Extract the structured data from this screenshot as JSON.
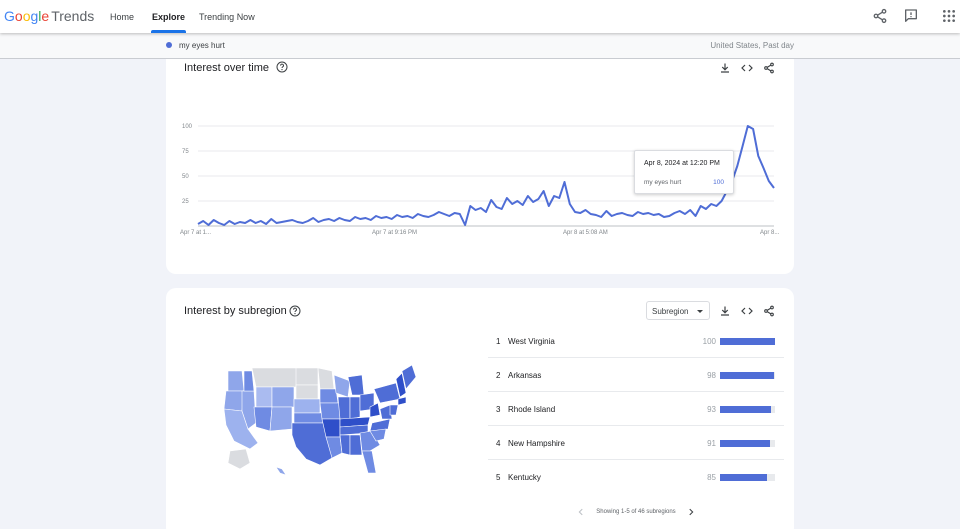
{
  "header": {
    "logo_google": [
      "G",
      "o",
      "o",
      "g",
      "l",
      "e"
    ],
    "logo_trends": "Trends",
    "nav": {
      "home": "Home",
      "explore": "Explore",
      "trending": "Trending Now"
    }
  },
  "query": {
    "term": "my eyes hurt",
    "location_time": "United States, Past day",
    "color": "#4f6dd6"
  },
  "interest_over_time": {
    "title": "Interest over time",
    "tooltip": {
      "date": "Apr 8, 2024 at 12:20 PM",
      "term": "my eyes hurt",
      "value": "100"
    }
  },
  "chart_data": {
    "type": "line",
    "title": "Interest over time",
    "y_ticks": [
      "100",
      "75",
      "50",
      "25"
    ],
    "x_ticks": [
      "Apr 7 at 1...",
      "Apr 7 at 9:16 PM",
      "Apr 8 at 5:08 AM",
      "Apr 8..."
    ],
    "ylim": [
      0,
      100
    ],
    "grid": true,
    "series": [
      {
        "name": "my eyes hurt",
        "color": "#4f6dd6",
        "values": [
          2,
          5,
          1,
          6,
          3,
          1,
          5,
          2,
          4,
          3,
          6,
          3,
          5,
          2,
          7,
          3,
          4,
          5,
          6,
          4,
          3,
          5,
          8,
          4,
          6,
          7,
          5,
          8,
          6,
          5,
          9,
          7,
          8,
          6,
          10,
          8,
          9,
          7,
          11,
          9,
          10,
          8,
          12,
          10,
          9,
          11,
          14,
          12,
          10,
          13,
          12,
          1,
          20,
          16,
          18,
          14,
          26,
          19,
          17,
          28,
          22,
          25,
          21,
          30,
          24,
          27,
          35,
          20,
          30,
          28,
          44,
          22,
          14,
          13,
          16,
          12,
          11,
          9,
          15,
          10,
          12,
          13,
          11,
          10,
          14,
          12,
          13,
          11,
          12,
          9,
          10,
          13,
          15,
          12,
          16,
          10,
          20,
          17,
          22,
          20,
          25,
          35,
          45,
          60,
          80,
          100,
          97,
          70,
          58,
          45,
          38
        ]
      }
    ]
  },
  "interest_by_subregion": {
    "title": "Interest by subregion",
    "dropdown": "Subregion",
    "rows": [
      {
        "rank": "1",
        "name": "West Virginia",
        "value": 100
      },
      {
        "rank": "2",
        "name": "Arkansas",
        "value": 98
      },
      {
        "rank": "3",
        "name": "Rhode Island",
        "value": 93
      },
      {
        "rank": "4",
        "name": "New Hampshire",
        "value": 91
      },
      {
        "rank": "5",
        "name": "Kentucky",
        "value": 85
      }
    ],
    "pager": "Showing 1-5 of 46 subregions"
  }
}
